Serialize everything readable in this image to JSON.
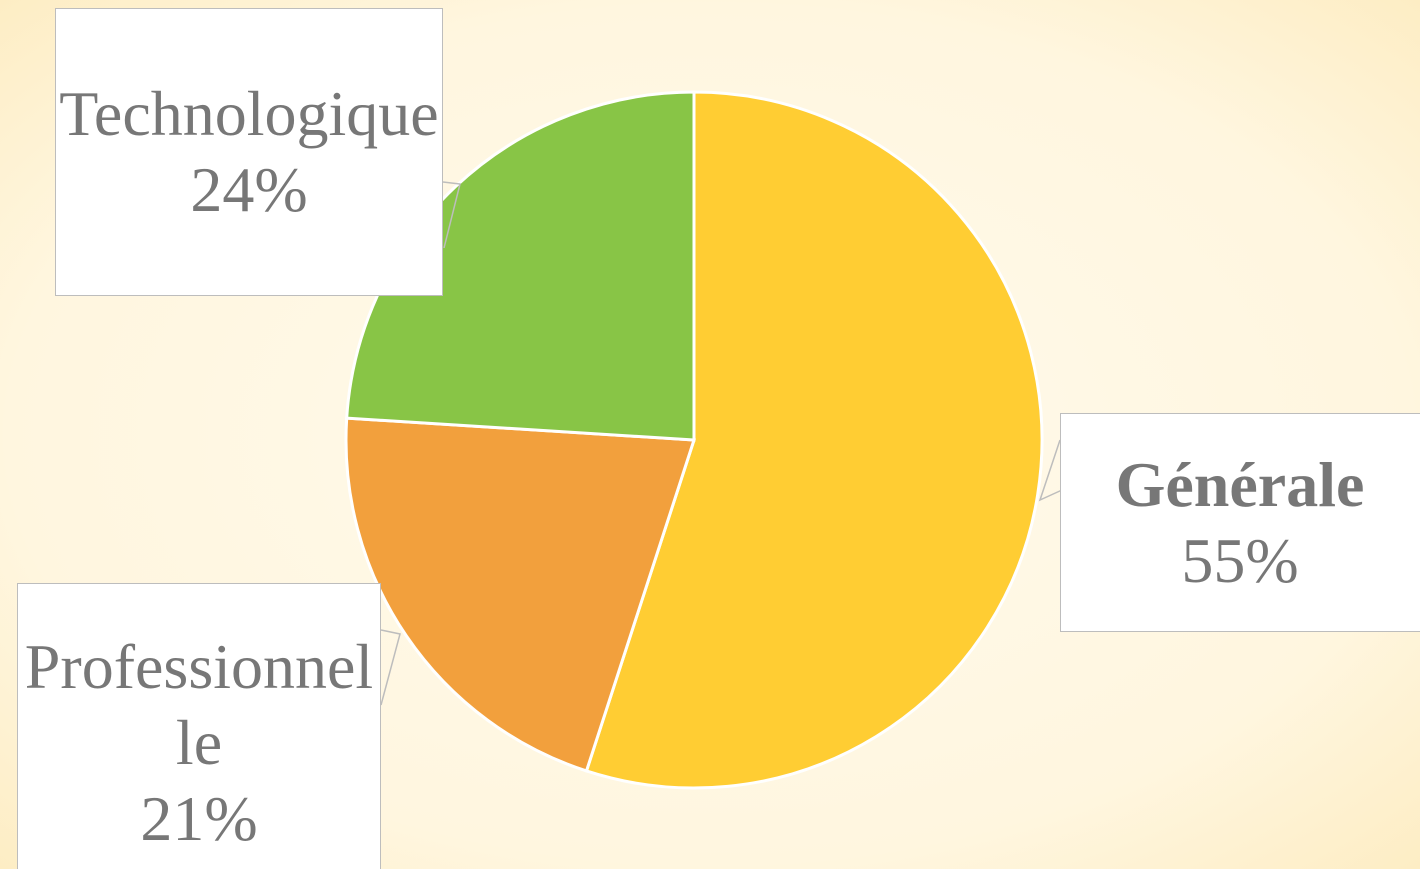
{
  "chart_data": {
    "type": "pie",
    "categories": [
      "Générale",
      "Professionnelle",
      "Technologique"
    ],
    "values": [
      55,
      21,
      24
    ],
    "value_labels": [
      "55%",
      "21%",
      "24%"
    ],
    "colors": [
      "#FFCD33",
      "#F2A03D",
      "#88C546"
    ]
  }
}
